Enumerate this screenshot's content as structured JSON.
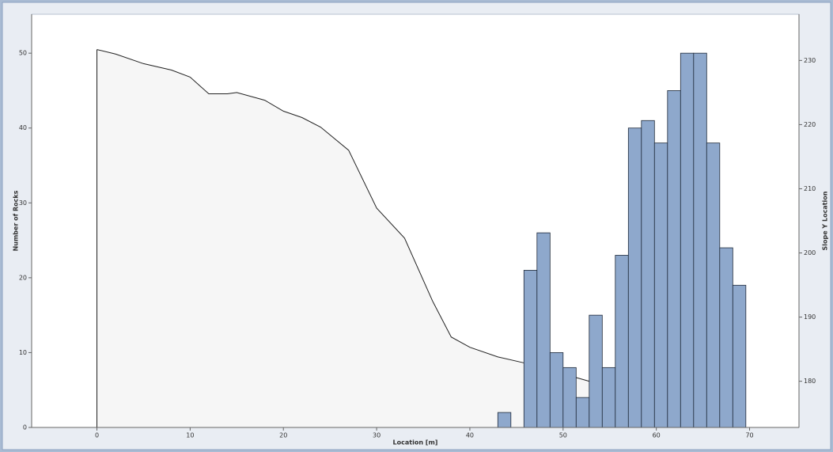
{
  "chart_data": [
    {
      "type": "histogram",
      "xlabel": "Location [m]",
      "ylabel": "Number of Rocks",
      "bins": [
        43.0,
        44.4,
        45.8,
        47.2,
        48.6,
        50.0,
        51.4,
        52.8,
        54.2,
        55.6,
        57.0,
        58.4,
        59.8,
        61.2,
        62.6,
        64.0,
        65.4,
        66.8,
        68.2,
        69.6
      ],
      "values": [
        2,
        0,
        21,
        26,
        10,
        8,
        4,
        15,
        8,
        23,
        40,
        41,
        38,
        45,
        50,
        50,
        38,
        24,
        19
      ],
      "color": "#8ea8cc",
      "xlim": [
        -7,
        75.3
      ],
      "xticks": [
        0,
        10,
        20,
        30,
        40,
        50,
        60,
        70
      ],
      "ylim": [
        0,
        55.2
      ],
      "yticks": [
        0,
        10,
        20,
        30,
        40,
        50
      ]
    },
    {
      "type": "line",
      "axis": "y2",
      "y2label": "Slope Y Location",
      "x": [
        0,
        2,
        5,
        8,
        10,
        12,
        14,
        15,
        18,
        20,
        22,
        24,
        27,
        30,
        33,
        36,
        38,
        40,
        43,
        46,
        52.8
      ],
      "values": [
        231.7,
        231.0,
        229.5,
        228.5,
        227.4,
        224.8,
        224.8,
        225.0,
        223.8,
        222.1,
        221.1,
        219.6,
        216.0,
        207.0,
        202.3,
        192.5,
        186.9,
        185.3,
        183.8,
        182.8,
        180.0
      ],
      "color": "#222222",
      "fill": "#f6f6f6",
      "y2lim": [
        172.8,
        237.2
      ],
      "y2ticks": [
        180,
        190,
        200,
        210,
        220,
        230
      ]
    }
  ]
}
